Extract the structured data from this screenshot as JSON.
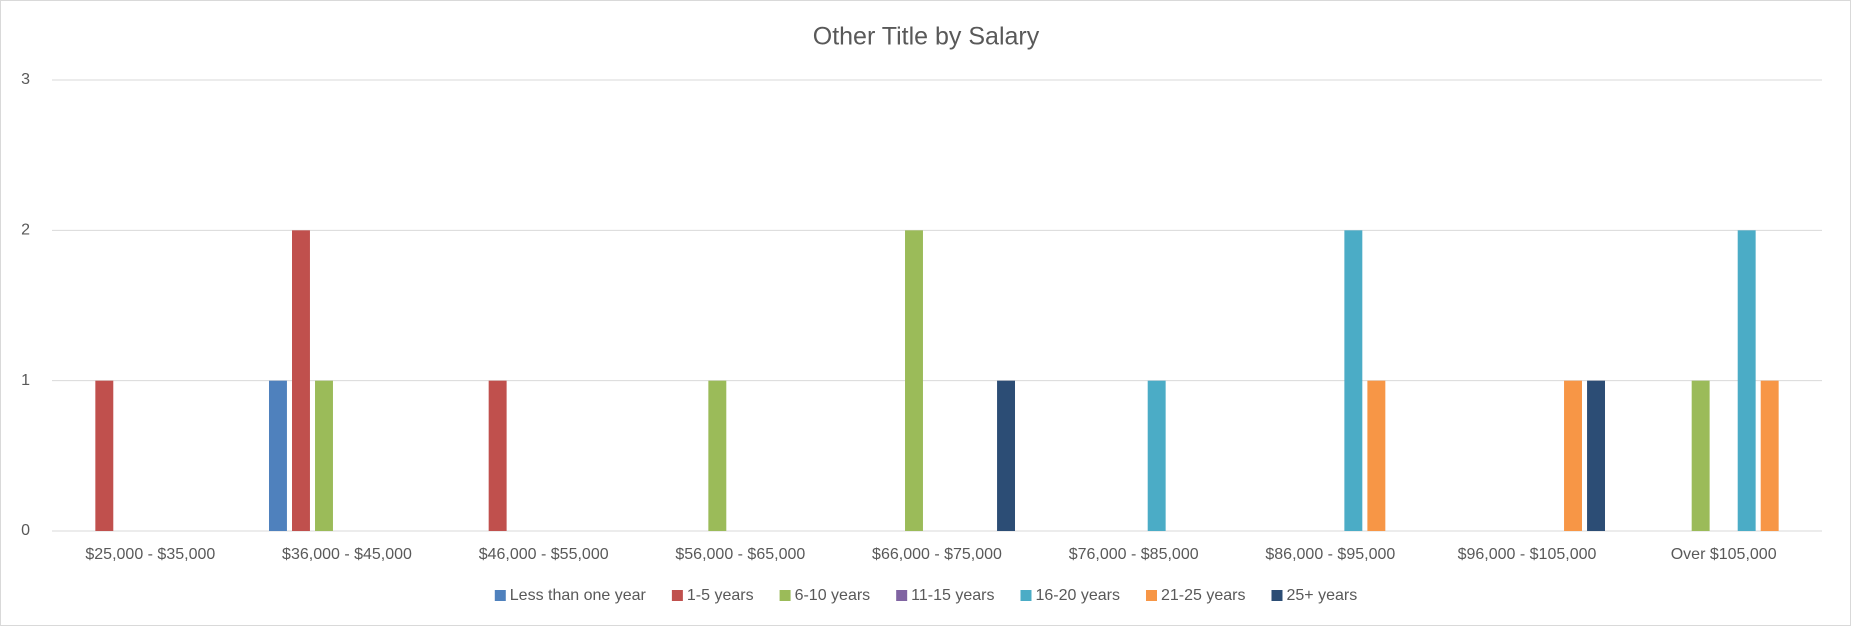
{
  "chart_data": {
    "type": "bar",
    "title": "Other Title by Salary",
    "categories": [
      "$25,000 - $35,000",
      "$36,000 - $45,000",
      "$46,000 - $55,000",
      "$56,000 - $65,000",
      "$66,000 - $75,000",
      "$76,000 - $85,000",
      "$86,000 - $95,000",
      "$96,000 - $105,000",
      "Over $105,000"
    ],
    "series": [
      {
        "name": "Less than one year",
        "color": "#4f81bd",
        "values": [
          0,
          1,
          0,
          0,
          0,
          0,
          0,
          0,
          0
        ]
      },
      {
        "name": "1-5 years",
        "color": "#c0504d",
        "values": [
          1,
          2,
          1,
          0,
          0,
          0,
          0,
          0,
          0
        ]
      },
      {
        "name": "6-10 years",
        "color": "#9bbb59",
        "values": [
          0,
          1,
          0,
          1,
          2,
          0,
          0,
          0,
          1
        ]
      },
      {
        "name": "11-15 years",
        "color": "#8064a2",
        "values": [
          0,
          0,
          0,
          0,
          0,
          0,
          0,
          0,
          0
        ]
      },
      {
        "name": "16-20 years",
        "color": "#4bacc6",
        "values": [
          0,
          0,
          0,
          0,
          0,
          1,
          2,
          0,
          2
        ]
      },
      {
        "name": "21-25 years",
        "color": "#f79646",
        "values": [
          0,
          0,
          0,
          0,
          0,
          0,
          1,
          1,
          1
        ]
      },
      {
        "name": "25+ years",
        "color": "#2c4d75",
        "values": [
          0,
          0,
          0,
          0,
          1,
          0,
          0,
          1,
          0
        ]
      }
    ],
    "ylim": [
      0,
      3
    ],
    "yticks": [
      0,
      1,
      2,
      3
    ],
    "grid": true,
    "legend": "bottom"
  }
}
